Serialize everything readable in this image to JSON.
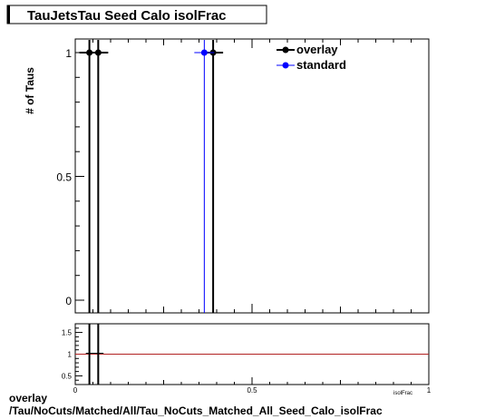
{
  "chart_data": {
    "type": "scatter",
    "title": "TauJetsTau Seed Calo isolFrac",
    "ylabel": "# of Taus",
    "xlabel": "isolFrac",
    "xlim": [
      0,
      1
    ],
    "ylim": [
      0,
      1.05
    ],
    "y_ticks": [
      "0",
      "0.5",
      "1"
    ],
    "legend_placement": "top-right",
    "series": [
      {
        "name": "overlay",
        "color": "#000000",
        "x": [
          0.04,
          0.065,
          0.39
        ],
        "y": [
          1,
          1,
          1
        ]
      },
      {
        "name": "standard",
        "color": "#0000ff",
        "x": [
          0.365
        ],
        "y": [
          1
        ]
      }
    ],
    "ratio": {
      "ylim": [
        0.3,
        1.7
      ],
      "y_ticks": [
        "0.5",
        "1",
        "1.5"
      ],
      "x_ticks": [
        "0",
        "0.5",
        "1"
      ],
      "reference_value": 1,
      "reference_color": "#b22222"
    }
  },
  "footer": {
    "line1": "overlay",
    "line2": "/Tau/NoCuts/Matched/All/Tau_NoCuts_Matched_All_Seed_Calo_isolFrac"
  }
}
